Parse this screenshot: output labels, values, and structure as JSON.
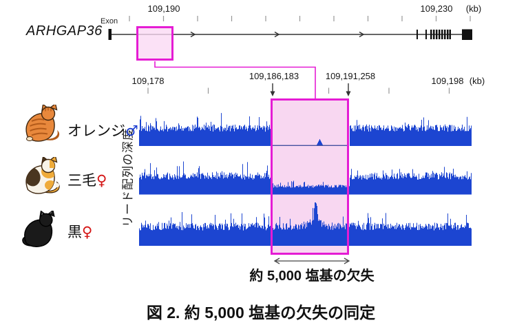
{
  "colors": {
    "coverage_blue": "#1c45d1",
    "highlight_magenta": "#e51cd4",
    "highlight_pink_fill": "#f8d7f1",
    "baseline_navy": "#44519f",
    "tick_gray": "#979797",
    "line_black": "#333333",
    "male_blue": "#1c3ed1",
    "female_red": "#d41414"
  },
  "gene_panel": {
    "gene_name": "ARHGAP36",
    "exon_label": "Exon",
    "ruler": {
      "labels": [
        "109,190",
        "109,230"
      ],
      "unit": "(kb)"
    }
  },
  "zoom_panel": {
    "ruler": {
      "left_label": "109,178",
      "right_label": "109,198",
      "unit": "(kb)"
    },
    "breakpoints": {
      "left": "109,186,183",
      "right": "109,191,258"
    },
    "ylabel": "リード配列の深度"
  },
  "samples": [
    {
      "label": "オレンジ",
      "sex_symbol": "♂",
      "sex_color": "#1c3ed1",
      "coat": "orange-tabby"
    },
    {
      "label": "三毛",
      "sex_symbol": "♀",
      "sex_color": "#d41414",
      "coat": "calico"
    },
    {
      "label": "黒",
      "sex_symbol": "♀",
      "sex_color": "#d41414",
      "coat": "black"
    }
  ],
  "cats": [
    {
      "body": "#e8883c",
      "stripe": "#b25a1a",
      "outline": "#3d250e",
      "accent": "#f6e3c4"
    },
    {
      "body": "#f8f3e8",
      "patch_orange": "#efab3a",
      "patch_dark": "#4a3620",
      "outline": "#3d250e"
    },
    {
      "body": "#1a1a1a",
      "outline": "#000000",
      "accent": "#606060"
    }
  ],
  "deletion_annotation": "約 5,000 塩基の欠失",
  "caption": "図 2. 約 5,000 塩基の欠失の同定",
  "chart_data": {
    "type": "area",
    "title": "リード配列の深度 (read-depth coverage tracks)",
    "x_axis": {
      "unit": "kb",
      "range": [
        109178,
        109198
      ],
      "ticks": [
        109178,
        109182,
        109186,
        109190,
        109194,
        109198
      ]
    },
    "gene_axis": {
      "unit": "kb",
      "labeled_ticks": [
        109190,
        109230
      ]
    },
    "deletion_region": {
      "start_bp_label": "109,186,183",
      "end_bp_label": "109,191,258",
      "approx_size_bases": 5000,
      "size_label": "約 5,000 塩基の欠失"
    },
    "tracks": [
      {
        "name": "オレンジ♂",
        "coverage_in_deletion": 0
      },
      {
        "name": "三毛♀",
        "coverage_in_deletion": 0.45
      },
      {
        "name": "黒♀",
        "coverage_in_deletion": 1
      }
    ]
  }
}
